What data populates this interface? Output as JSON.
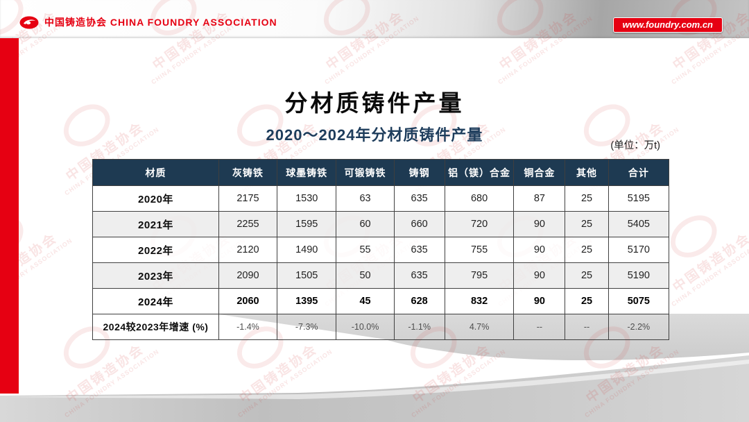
{
  "header": {
    "org_name": "中国铸造协会 CHINA FOUNDRY ASSOCIATION",
    "website_badge": "www.foundry.com.cn"
  },
  "title": "分材质铸件产量",
  "subtitle": "2020～2024年分材质铸件产量",
  "unit_label": "(单位：万t)",
  "watermark": {
    "cn": "中国铸造协会",
    "en": "CHINA FOUNDRY ASSOCIATION"
  },
  "colors": {
    "accent_red": "#e60012",
    "table_header_navy": "#1e3a52",
    "subtitle_navy": "#1e3d5c",
    "row_alt_gray": "#ececec",
    "swoosh_gray": "#d7d7d7"
  },
  "chart_data": {
    "type": "table",
    "title": "2020～2024年分材质铸件产量",
    "unit": "万t",
    "columns": [
      "材质",
      "灰铸铁",
      "球墨铸铁",
      "可锻铸铁",
      "铸钢",
      "铝（镁）合金",
      "铜合金",
      "其他",
      "合计"
    ],
    "rows": [
      {
        "label": "2020年",
        "values": [
          "2175",
          "1530",
          "63",
          "635",
          "680",
          "87",
          "25",
          "5195"
        ]
      },
      {
        "label": "2021年",
        "values": [
          "2255",
          "1595",
          "60",
          "660",
          "720",
          "90",
          "25",
          "5405"
        ]
      },
      {
        "label": "2022年",
        "values": [
          "2120",
          "1490",
          "55",
          "635",
          "755",
          "90",
          "25",
          "5170"
        ]
      },
      {
        "label": "2023年",
        "values": [
          "2090",
          "1505",
          "50",
          "635",
          "795",
          "90",
          "25",
          "5190"
        ]
      },
      {
        "label": "2024年",
        "values": [
          "2060",
          "1395",
          "45",
          "628",
          "832",
          "90",
          "25",
          "5075"
        ]
      },
      {
        "label": "2024较2023年增速 (%)",
        "values": [
          "-1.4%",
          "-7.3%",
          "-10.0%",
          "-1.1%",
          "4.7%",
          "--",
          "--",
          "-2.2%"
        ]
      }
    ]
  }
}
